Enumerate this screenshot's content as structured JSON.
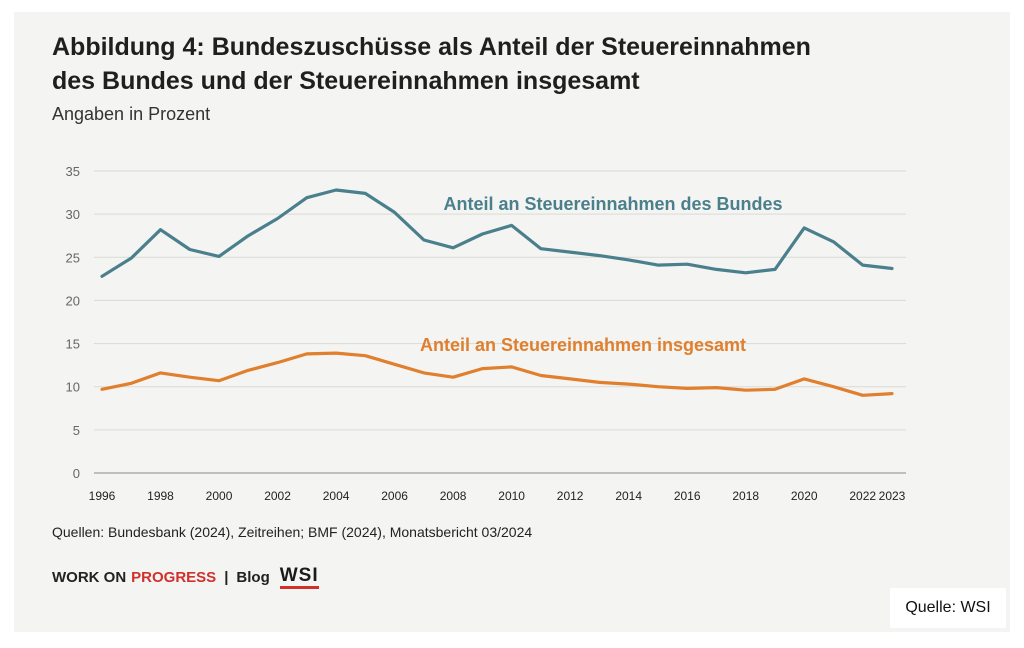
{
  "title_line1": "Abbildung 4: Bundeszuschüsse als Anteil der Steuereinnahmen",
  "title_line2": "des Bundes und der Steuereinnahmen insgesamt",
  "subtitle": "Angaben in Prozent",
  "source": "Quellen: Bundesbank (2024), Zeitreihen; BMF (2024), Monatsbericht 03/2024",
  "brand": {
    "work_on": "WORK ON",
    "progress": "PROGRESS",
    "separator": "|",
    "blog": "Blog",
    "logo_text": "WSI"
  },
  "credit": "Quelle: WSI",
  "colors": {
    "bund": "#4a7f8c",
    "gesamt": "#e07f2d",
    "accent": "#d0312d"
  },
  "chart_data": {
    "type": "line",
    "x": [
      1996,
      1997,
      1998,
      1999,
      2000,
      2001,
      2002,
      2003,
      2004,
      2005,
      2006,
      2007,
      2008,
      2009,
      2010,
      2011,
      2012,
      2013,
      2014,
      2015,
      2016,
      2017,
      2018,
      2019,
      2020,
      2021,
      2022,
      2023
    ],
    "x_tick_labels": [
      "1996",
      "1998",
      "2000",
      "2002",
      "2004",
      "2006",
      "2008",
      "2010",
      "2012",
      "2014",
      "2016",
      "2018",
      "2020",
      "2022",
      "2023"
    ],
    "y_ticks": [
      0,
      5,
      10,
      15,
      20,
      25,
      30,
      35
    ],
    "ylim": [
      0,
      35
    ],
    "grid": true,
    "series": [
      {
        "name": "Anteil an Steuereinnahmen des Bundes",
        "color": "#4a7f8c",
        "values": [
          22.8,
          24.9,
          28.2,
          25.9,
          25.1,
          27.5,
          29.5,
          31.9,
          32.8,
          32.4,
          30.2,
          27.0,
          26.1,
          27.7,
          28.7,
          26.0,
          25.6,
          25.2,
          24.7,
          24.1,
          24.2,
          23.6,
          23.2,
          23.6,
          28.4,
          26.8,
          24.1,
          23.7
        ]
      },
      {
        "name": "Anteil an Steuereinnahmen insgesamt",
        "color": "#e07f2d",
        "values": [
          9.7,
          10.4,
          11.6,
          11.1,
          10.7,
          11.9,
          12.8,
          13.8,
          13.9,
          13.6,
          12.6,
          11.6,
          11.1,
          12.1,
          12.3,
          11.3,
          10.9,
          10.5,
          10.3,
          10.0,
          9.8,
          9.9,
          9.6,
          9.7,
          10.9,
          10.0,
          9.0,
          9.2
        ]
      }
    ]
  }
}
